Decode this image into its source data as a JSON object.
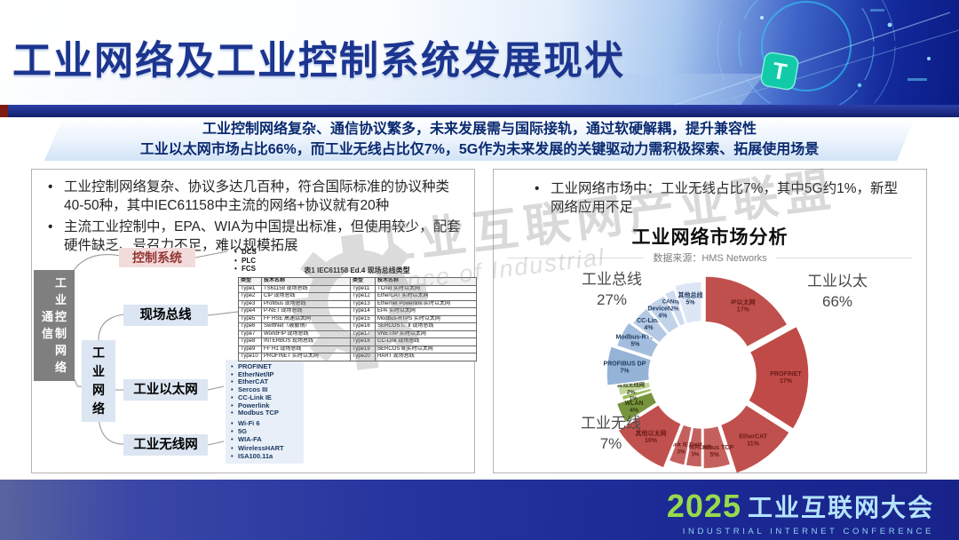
{
  "header": {
    "title": "工业网络及工业控制系统发展现状"
  },
  "banner": {
    "line1": "工业控制网络复杂、通信协议繁多，未来发展需与国际接轨，通过软硬解耦，提升兼容性",
    "line2": "工业以太网市场占比66%，而工业无线占比仅7%，5G作为未来发展的关键驱动力需积极探索、拓展使用场景"
  },
  "left_panel": {
    "bullets": [
      "工业控制网络复杂、协议多达几百种，符合国际标准的协议种类40-50种，其中IEC61158中主流的网络+协议就有20种",
      "主流工业控制中，EPA、WIA为中国提出标准，但使用较少，配套硬件缺乏、号召力不足，难以规模拓展"
    ],
    "diagram": {
      "root_left": "通信",
      "root_right": "工业控制网络",
      "network_box": "工业网络",
      "branch_control": "控制系统",
      "branch_fieldbus": "现场总线",
      "branch_ethernet": "工业以太网",
      "branch_wireless": "工业无线网",
      "control_list": [
        "DCS",
        "PLC",
        "FCS"
      ],
      "ethernet_list": [
        "PROFINET",
        "EtherNet/IP",
        "EtherCAT",
        "Sercos III",
        "CC-Link IE",
        "Powerlink",
        "Modbus TCP"
      ],
      "wireless_list": [
        "Wi-Fi 6",
        "5G",
        "WIA-FA",
        "WirelessHART",
        "ISA100.11a"
      ]
    },
    "table": {
      "title": "表1  IEC61158 Ed.4 现场总线类型",
      "headers": [
        "类型",
        "技术名称",
        "类型",
        "技术名称"
      ],
      "rows": [
        [
          "Type1",
          "TS61158 现场总线",
          "Type11",
          "TCnet 实时以太网"
        ],
        [
          "Type2",
          "CIP 现场总线",
          "Type12",
          "EtherCAT 实时以太网"
        ],
        [
          "Type3",
          "Profibus 现场总线",
          "Type13",
          "Ethernet Powerlink 实时以太网"
        ],
        [
          "Type4",
          "P-NET 现场总线",
          "Type14",
          "EPA 实时以太网"
        ],
        [
          "Type5",
          "FF HSE 高速以太网",
          "Type15",
          "Modbus-RTPS 实时以太网"
        ],
        [
          "Type6",
          "SwiftNet（被撤销）",
          "Type16",
          "SERCOS Ⅰ、Ⅱ 现场总线"
        ],
        [
          "Type7",
          "WorldFIP 现场总线",
          "Type17",
          "VNET/IP 实时以太网"
        ],
        [
          "Type8",
          "INTERBUS 现场总线",
          "Type18",
          "CC-Link 现场总线"
        ],
        [
          "Type9",
          "FF H1 现场总线",
          "Type19",
          "SERCOS Ⅲ 实时以太网"
        ],
        [
          "Type10",
          "PROFINET 实时以太网",
          "Type20",
          "HART 现场总线"
        ]
      ]
    }
  },
  "right_panel": {
    "bullet": "工业网络市场中：工业无线占比7%，其中5G约1%，新型网络应用不足",
    "chart_title": "工业网络市场分析",
    "source": "数据来源：HMS Networks"
  },
  "watermark": {
    "cn": "工业互联网产业联盟",
    "en": "ance of Industrial"
  },
  "footer": {
    "year": "2025",
    "title_cn": "工业互联网大会",
    "subtitle": "INDUSTRIAL INTERNET CONFERENCE"
  },
  "chart_data": {
    "type": "pie",
    "style": "exploded-donut",
    "title": "工业网络市场分析",
    "source": "数据来源：HMS Networks",
    "legend_position": "around",
    "groups": [
      {
        "id": "ethernet",
        "name": "工业以太",
        "pct": "66%",
        "value": 66,
        "color": "#c0504d",
        "label_color": "#6b1b19"
      },
      {
        "id": "fieldbus",
        "name": "工业总线",
        "pct": "27%",
        "value": 27,
        "color": "#95b3d7",
        "label_color": "#1e3a5f"
      },
      {
        "id": "wireless",
        "name": "工业无线",
        "pct": "7%",
        "value": 7,
        "color": "#77933c",
        "label_color": "#2f3c10"
      }
    ],
    "segments": [
      {
        "label": "IP以太网",
        "value": 17,
        "group": "ethernet",
        "color": "#c0504d"
      },
      {
        "label": "PROFINET",
        "value": 17,
        "group": "ethernet",
        "color": "#bf4a47"
      },
      {
        "label": "EtherCAT",
        "value": 11,
        "group": "ethernet",
        "color": "#c0504d"
      },
      {
        "label": "Modbus TCP",
        "value": 5,
        "group": "ethernet",
        "color": "#c4615e"
      },
      {
        "label": "POWERLINK",
        "value": 3,
        "group": "ethernet",
        "color": "#c4615e"
      },
      {
        "label": "CC-Link IE Field",
        "value": 3,
        "group": "ethernet",
        "color": "#c4615e"
      },
      {
        "label": "其他以太网",
        "value": 10,
        "group": "ethernet",
        "color": "#c0504d"
      },
      {
        "label": "WLAN",
        "value": 4,
        "group": "wireless",
        "color": "#77933c"
      },
      {
        "label": "5G",
        "value": 1,
        "group": "wireless",
        "color": "#9bbb59"
      },
      {
        "label": "其他无线网",
        "value": 2,
        "group": "wireless",
        "color": "#c2d69a"
      },
      {
        "label": "PROFIBUS DP",
        "value": 7,
        "group": "fieldbus",
        "color": "#95b3d7"
      },
      {
        "label": "Modbus-RTU",
        "value": 5,
        "group": "fieldbus",
        "color": "#a3bdde"
      },
      {
        "label": "CC-Link",
        "value": 4,
        "group": "fieldbus",
        "color": "#b3c9e4"
      },
      {
        "label": "DeviceNet",
        "value": 4,
        "group": "fieldbus",
        "color": "#c1d3ea"
      },
      {
        "label": "CANopen",
        "value": 2,
        "group": "fieldbus",
        "color": "#cfdcf0"
      },
      {
        "label": "其他总线",
        "value": 5,
        "group": "fieldbus",
        "color": "#dde6f4"
      }
    ]
  }
}
